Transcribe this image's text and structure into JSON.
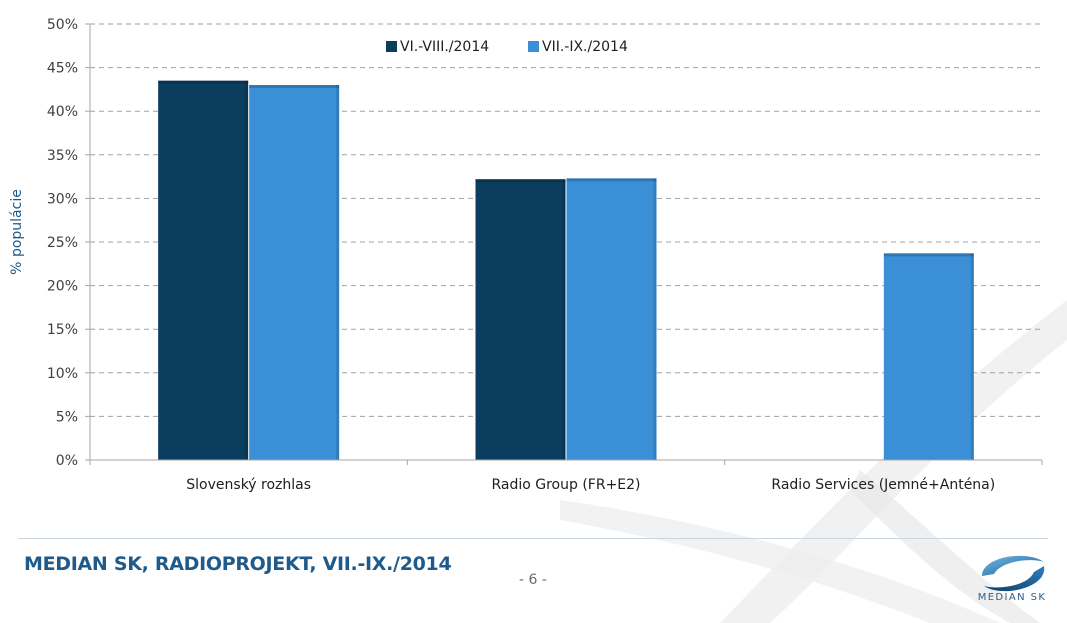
{
  "chart_data": {
    "type": "bar",
    "categories": [
      "Slovenský rozhlas",
      "Radio Group (FR+E2)",
      "Radio Services (Jemné+Anténa)"
    ],
    "series": [
      {
        "name": "VI.-VIII./2014",
        "color": "#0b3d5e",
        "values": [
          43.5,
          32.2,
          null
        ]
      },
      {
        "name": "VII.-IX./2014",
        "color": "#3a8fd6",
        "values": [
          43.0,
          32.3,
          23.7
        ]
      }
    ],
    "ylabel": "% populácie",
    "ylim": [
      0,
      50
    ],
    "yticks": [
      "0%",
      "5%",
      "10%",
      "15%",
      "20%",
      "25%",
      "30%",
      "35%",
      "40%",
      "45%",
      "50%"
    ],
    "grid": true,
    "legend_position": "top-center"
  },
  "footer": {
    "title": "MEDIAN SK, RADIOPROJEKT, VII.-IX./2014",
    "page_number": "- 6 -",
    "logo_text": "MEDIAN SK"
  }
}
